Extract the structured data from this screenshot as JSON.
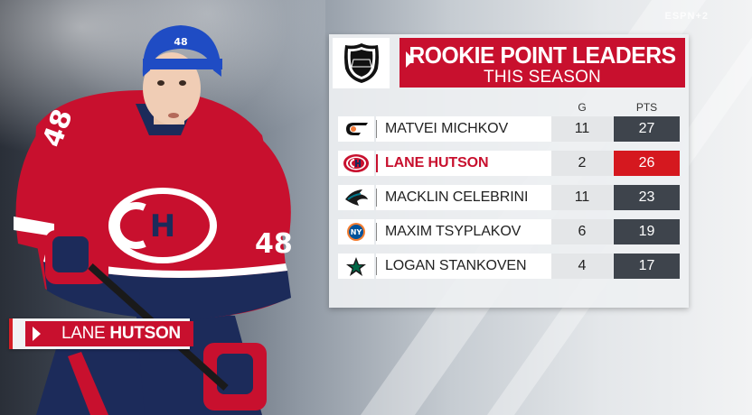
{
  "broadcast": {
    "watermark": "ESPN+2"
  },
  "name_tag": {
    "first_name": "LANE",
    "last_name": "HUTSON"
  },
  "player_jersey_number": "48",
  "leaderboard": {
    "title": "ROOKIE POINT LEADERS",
    "subtitle": "THIS SEASON",
    "columns": {
      "goals": "G",
      "points": "PTS"
    },
    "rows": [
      {
        "team_logo": "flyers-logo",
        "name": "MATVEI MICHKOV",
        "goals": "11",
        "points": "27",
        "highlighted": false
      },
      {
        "team_logo": "canadiens-logo",
        "name": "LANE HUTSON",
        "goals": "2",
        "points": "26",
        "highlighted": true
      },
      {
        "team_logo": "sharks-logo",
        "name": "MACKLIN CELEBRINI",
        "goals": "11",
        "points": "23",
        "highlighted": false
      },
      {
        "team_logo": "islanders-logo",
        "name": "MAXIM TSYPLAKOV",
        "goals": "6",
        "points": "19",
        "highlighted": false
      },
      {
        "team_logo": "stars-logo",
        "name": "LOGAN STANKOVEN",
        "goals": "4",
        "points": "17",
        "highlighted": false
      }
    ]
  },
  "colors": {
    "accent_red": "#c8102e",
    "highlight_red": "#d5181f",
    "dark_cell": "#3e444c"
  }
}
